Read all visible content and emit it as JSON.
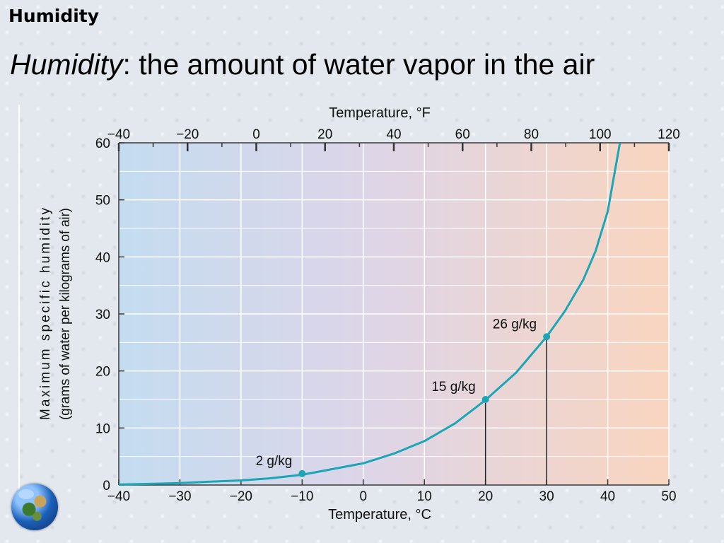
{
  "slide": {
    "header": "Humidity",
    "title_term": "Humidity",
    "title_rest": ": the amount of water vapor in the air"
  },
  "chart_data": {
    "type": "line",
    "title": "",
    "xlabel": "Temperature, °C",
    "x2label": "Temperature, °F",
    "ylabel_line1": "Maximum specific humidity",
    "ylabel_line2": "(grams of water per kilograms of air)",
    "xlim": [
      -40,
      50
    ],
    "ylim": [
      0,
      60
    ],
    "x2lim": [
      -40,
      120
    ],
    "x_ticks": [
      -40,
      -30,
      -20,
      -10,
      0,
      10,
      20,
      30,
      40,
      50
    ],
    "x2_ticks": [
      -40,
      -20,
      0,
      20,
      40,
      60,
      80,
      100,
      120
    ],
    "y_ticks": [
      0,
      10,
      20,
      30,
      40,
      50,
      60
    ],
    "grid": true,
    "series": [
      {
        "color": "#1aa6b7",
        "x": [
          -40,
          -35,
          -30,
          -25,
          -20,
          -15,
          -10,
          -5,
          0,
          5,
          10,
          15,
          20,
          25,
          30,
          33,
          36,
          38,
          40,
          41,
          42
        ],
        "y": [
          0.1,
          0.2,
          0.35,
          0.6,
          0.8,
          1.2,
          1.8,
          2.8,
          3.8,
          5.5,
          7.7,
          10.8,
          14.9,
          19.7,
          26.0,
          30.5,
          36.0,
          41.0,
          48.0,
          54.0,
          60.0
        ]
      }
    ],
    "annotations": [
      {
        "label": "2 g/kg",
        "x": -10,
        "y": 2,
        "line_to_axis": false
      },
      {
        "label": "15 g/kg",
        "x": 20,
        "y": 15,
        "line_to_axis": true
      },
      {
        "label": "26 g/kg",
        "x": 30,
        "y": 26,
        "line_to_axis": true
      }
    ],
    "colors": {
      "background_cold": "#c4dcf0",
      "background_mid": "#ddd5e8",
      "background_warm": "#f9d5bf",
      "curve": "#1aa6b7"
    }
  }
}
